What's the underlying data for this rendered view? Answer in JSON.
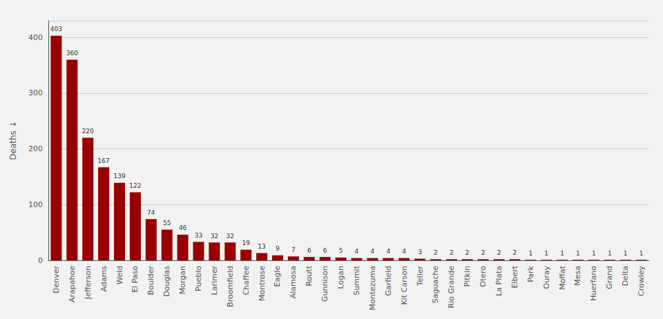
{
  "chart_data": {
    "type": "bar",
    "ylabel": "Deaths ↓",
    "categories": [
      "Denver",
      "Arapahoe",
      "Jefferson",
      "Adams",
      "Weld",
      "El Paso",
      "Boulder",
      "Douglas",
      "Morgan",
      "Pueblo",
      "Larimer",
      "Broomfield",
      "Chaffee",
      "Montrose",
      "Eagle",
      "Alamosa",
      "Routt",
      "Gunnison",
      "Logan",
      "Summit",
      "Montezuma",
      "Garfield",
      "Kit Carson",
      "Teller",
      "Saguache",
      "Rio Grande",
      "Pitkin",
      "Otero",
      "La Plata",
      "Elbert",
      "Park",
      "Ouray",
      "Moffat",
      "Mesa",
      "Huerfano",
      "Grand",
      "Delta",
      "Crowley"
    ],
    "values": [
      403,
      360,
      220,
      167,
      139,
      122,
      74,
      55,
      46,
      33,
      32,
      32,
      19,
      13,
      9,
      7,
      6,
      6,
      5,
      4,
      4,
      4,
      4,
      3,
      2,
      2,
      2,
      2,
      2,
      2,
      1,
      1,
      1,
      1,
      1,
      1,
      1,
      1
    ],
    "color": "#990000",
    "ylim": [
      0,
      430
    ],
    "yticks": [
      0,
      100,
      200,
      300,
      400
    ],
    "grid": true,
    "data_labels": true
  }
}
